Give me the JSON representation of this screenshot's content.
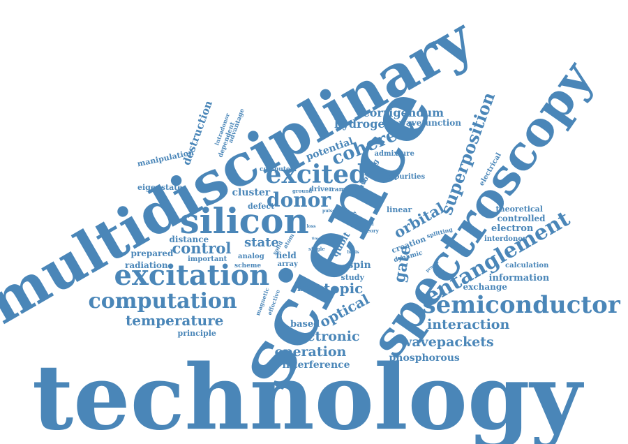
{
  "colors": {
    "word": "#4a86b8",
    "background": "#ffffff"
  },
  "words": [
    {
      "id": "technology",
      "text": "technology"
    },
    {
      "id": "science",
      "text": "science"
    },
    {
      "id": "multidisciplinary",
      "text": "multidisciplinary"
    },
    {
      "id": "spectroscopy",
      "text": "spectroscopy"
    },
    {
      "id": "silicon",
      "text": "silicon"
    },
    {
      "id": "semiconductor",
      "text": "semiconductor"
    },
    {
      "id": "excitation",
      "text": "excitation"
    },
    {
      "id": "computation",
      "text": "computation"
    },
    {
      "id": "entanglement",
      "text": "entanglement"
    },
    {
      "id": "excited",
      "text": "excited"
    },
    {
      "id": "donor",
      "text": "donor"
    },
    {
      "id": "superposition",
      "text": "superposition"
    },
    {
      "id": "coherent",
      "text": "coherent"
    },
    {
      "id": "control",
      "text": "control"
    },
    {
      "id": "orbital",
      "text": "orbital"
    },
    {
      "id": "gate",
      "text": "gate"
    },
    {
      "id": "state",
      "text": "state"
    },
    {
      "id": "topic",
      "text": "topic"
    },
    {
      "id": "optical",
      "text": "optical"
    },
    {
      "id": "temperature",
      "text": "temperature"
    },
    {
      "id": "electronic",
      "text": "electronic"
    },
    {
      "id": "operation",
      "text": "operation"
    },
    {
      "id": "wavepackets",
      "text": "wavepackets"
    },
    {
      "id": "interaction",
      "text": "interaction"
    },
    {
      "id": "interference",
      "text": "interference"
    },
    {
      "id": "phosphorous",
      "text": "phosphorous"
    },
    {
      "id": "corrigendum",
      "text": "corrigendum"
    },
    {
      "id": "hydrogen",
      "text": "hydrogen"
    },
    {
      "id": "wavefunction",
      "text": "wavefunction"
    },
    {
      "id": "potential",
      "text": "potential"
    },
    {
      "id": "destruction",
      "text": "destruction"
    },
    {
      "id": "manipulation",
      "text": "manipulation"
    },
    {
      "id": "eigenstate",
      "text": "eigenstate"
    },
    {
      "id": "cluster",
      "text": "cluster"
    },
    {
      "id": "defect",
      "text": "defect"
    },
    {
      "id": "distance",
      "text": "distance"
    },
    {
      "id": "prepared",
      "text": "prepared"
    },
    {
      "id": "radiation",
      "text": "radiation"
    },
    {
      "id": "important",
      "text": "important"
    },
    {
      "id": "analog",
      "text": "analog"
    },
    {
      "id": "scheme",
      "text": "scheme"
    },
    {
      "id": "field",
      "text": "field"
    },
    {
      "id": "array",
      "text": "array"
    },
    {
      "id": "principle",
      "text": "principle"
    },
    {
      "id": "based",
      "text": "based"
    },
    {
      "id": "beat",
      "text": "beat"
    },
    {
      "id": "spin",
      "text": "spin"
    },
    {
      "id": "study",
      "text": "study"
    },
    {
      "id": "qubit",
      "text": "qubit"
    },
    {
      "id": "creation",
      "text": "creation"
    },
    {
      "id": "dynamic",
      "text": "dynamic"
    },
    {
      "id": "linear",
      "text": "linear"
    },
    {
      "id": "impurities",
      "text": "impurities"
    },
    {
      "id": "admixture",
      "text": "admixture"
    },
    {
      "id": "computer",
      "text": "computer"
    },
    {
      "id": "ground",
      "text": "ground"
    },
    {
      "id": "driven",
      "text": "driven"
    },
    {
      "id": "ramsey",
      "text": "ramsey"
    },
    {
      "id": "avoiding",
      "text": "avoiding"
    },
    {
      "id": "electrical",
      "text": "electrical"
    },
    {
      "id": "theoretical",
      "text": "theoretical"
    },
    {
      "id": "controlled",
      "text": "controlled"
    },
    {
      "id": "electron",
      "text": "electron"
    },
    {
      "id": "interdonor",
      "text": "interdonor"
    },
    {
      "id": "information",
      "text": "information"
    },
    {
      "id": "exchange",
      "text": "exchange"
    },
    {
      "id": "calculation",
      "text": "calculation"
    },
    {
      "id": "splitting",
      "text": "splitting"
    },
    {
      "id": "theory",
      "text": "theory"
    },
    {
      "id": "crucial",
      "text": "crucial"
    },
    {
      "id": "intradonor",
      "text": "intradonor"
    },
    {
      "id": "dependent",
      "text": "dependent"
    },
    {
      "id": "advantage",
      "text": "advantage"
    },
    {
      "id": "magnetic",
      "text": "magnetic"
    },
    {
      "id": "effective",
      "text": "effective"
    },
    {
      "id": "solid",
      "text": "solid"
    },
    {
      "id": "atom",
      "text": "atom"
    },
    {
      "id": "read",
      "text": "read"
    },
    {
      "id": "single",
      "text": "single"
    },
    {
      "id": "pulse",
      "text": "pulse"
    },
    {
      "id": "ability",
      "text": "ability"
    },
    {
      "id": "loss",
      "text": "loss"
    },
    {
      "id": "time",
      "text": "time"
    },
    {
      "id": "proper",
      "text": "proper"
    },
    {
      "id": "basis",
      "text": "basis"
    }
  ]
}
